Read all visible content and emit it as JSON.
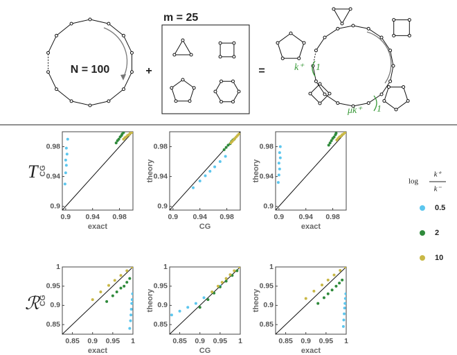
{
  "diagram": {
    "ring_label": "N = 100",
    "plus": "+",
    "motif_label": "m = 25",
    "equals": "=",
    "rate_forward": "k⁺",
    "rate_back": "1",
    "rate_forward_mu": "μk⁺",
    "rate_back_2": "1"
  },
  "row_labels": [
    "T",
    "ℛ"
  ],
  "legend": {
    "prefix": "log",
    "numerator": "k⁺",
    "denominator": "k⁻"
  },
  "chart_data": [
    {
      "type": "scatter",
      "xlabel": "exact",
      "ylabel": "CG",
      "xlim": [
        0.895,
        1.0
      ],
      "ylim": [
        0.895,
        1.0
      ],
      "xticks": [
        0.9,
        0.94,
        0.98
      ],
      "yticks": [
        0.9,
        0.94,
        0.98
      ],
      "series": [
        {
          "name": "0.5",
          "color": "#5cc6ee",
          "x": [
            0.899,
            0.9,
            0.901,
            0.9,
            0.902,
            0.901,
            0.903
          ],
          "values": [
            0.93,
            0.945,
            0.955,
            0.962,
            0.97,
            0.978,
            0.99
          ]
        },
        {
          "name": "2",
          "color": "#2f8a3b",
          "x": [
            0.975,
            0.977,
            0.979,
            0.981,
            0.983,
            0.984,
            0.986
          ],
          "values": [
            0.985,
            0.988,
            0.99,
            0.993,
            0.995,
            0.997,
            0.999
          ]
        },
        {
          "name": "10",
          "color": "#c9b846",
          "x": [
            0.986,
            0.988,
            0.99,
            0.992,
            0.994,
            0.996,
            0.998
          ],
          "values": [
            0.99,
            0.992,
            0.993,
            0.995,
            0.996,
            0.998,
            0.999
          ]
        }
      ]
    },
    {
      "type": "scatter",
      "xlabel": "CG",
      "ylabel": "theory",
      "xlim": [
        0.895,
        1.0
      ],
      "ylim": [
        0.895,
        1.0
      ],
      "xticks": [
        0.9,
        0.94,
        0.98
      ],
      "yticks": [
        0.9,
        0.94,
        0.98
      ],
      "series": [
        {
          "color": "#5cc6ee",
          "x": [
            0.93,
            0.94,
            0.948,
            0.955,
            0.962,
            0.97,
            0.978
          ],
          "values": [
            0.925,
            0.934,
            0.941,
            0.947,
            0.953,
            0.96,
            0.967
          ]
        },
        {
          "color": "#2f8a3b",
          "x": [
            0.976,
            0.979,
            0.982,
            0.985,
            0.987,
            0.989,
            0.991
          ],
          "values": [
            0.976,
            0.979,
            0.982,
            0.984,
            0.987,
            0.989,
            0.99
          ]
        },
        {
          "color": "#c9b846",
          "x": [
            0.986,
            0.988,
            0.99,
            0.992,
            0.994,
            0.996,
            0.998
          ],
          "values": [
            0.985,
            0.987,
            0.989,
            0.991,
            0.993,
            0.995,
            0.997
          ]
        }
      ]
    },
    {
      "type": "scatter",
      "xlabel": "exact",
      "ylabel": "theory",
      "xlim": [
        0.895,
        1.0
      ],
      "ylim": [
        0.895,
        1.0
      ],
      "xticks": [
        0.9,
        0.94,
        0.98
      ],
      "yticks": [
        0.9,
        0.94,
        0.98
      ],
      "series": [
        {
          "color": "#5cc6ee",
          "x": [
            0.899,
            0.9,
            0.901,
            0.9,
            0.902,
            0.901,
            0.902
          ],
          "values": [
            0.932,
            0.942,
            0.95,
            0.958,
            0.965,
            0.972,
            0.98
          ]
        },
        {
          "color": "#2f8a3b",
          "x": [
            0.974,
            0.976,
            0.978,
            0.98,
            0.982,
            0.984,
            0.985
          ],
          "values": [
            0.982,
            0.985,
            0.988,
            0.991,
            0.993,
            0.996,
            0.998
          ]
        },
        {
          "color": "#c9b846",
          "x": [
            0.986,
            0.988,
            0.99,
            0.992,
            0.994,
            0.996,
            0.998
          ],
          "values": [
            0.989,
            0.991,
            0.993,
            0.994,
            0.996,
            0.997,
            0.999
          ]
        }
      ]
    },
    {
      "type": "scatter",
      "xlabel": "exact",
      "ylabel": "CG",
      "xlim": [
        0.825,
        1.0
      ],
      "ylim": [
        0.825,
        1.0
      ],
      "xticks": [
        0.85,
        0.9,
        0.95,
        1
      ],
      "yticks": [
        0.85,
        0.9,
        0.95,
        1
      ],
      "series": [
        {
          "color": "#5cc6ee",
          "x": [
            0.992,
            0.994,
            0.995,
            0.996,
            0.997,
            0.998,
            0.999
          ],
          "values": [
            0.84,
            0.86,
            0.875,
            0.89,
            0.905,
            0.915,
            0.93
          ]
        },
        {
          "color": "#2f8a3b",
          "x": [
            0.935,
            0.95,
            0.96,
            0.97,
            0.978,
            0.985,
            0.992
          ],
          "values": [
            0.91,
            0.925,
            0.935,
            0.945,
            0.95,
            0.96,
            0.97
          ]
        },
        {
          "color": "#c9b846",
          "x": [
            0.9,
            0.92,
            0.94,
            0.955,
            0.97,
            0.985,
            0.998
          ],
          "values": [
            0.915,
            0.935,
            0.952,
            0.965,
            0.978,
            0.99,
            1.0
          ]
        }
      ]
    },
    {
      "type": "scatter",
      "xlabel": "CG",
      "ylabel": "theory",
      "xlim": [
        0.825,
        1.0
      ],
      "ylim": [
        0.825,
        1.0
      ],
      "xticks": [
        0.85,
        0.9,
        0.95,
        1
      ],
      "yticks": [
        0.85,
        0.9,
        0.95,
        1
      ],
      "series": [
        {
          "color": "#5cc6ee",
          "x": [
            0.83,
            0.85,
            0.87,
            0.89,
            0.91,
            0.93,
            0.95
          ],
          "values": [
            0.875,
            0.885,
            0.895,
            0.905,
            0.92,
            0.935,
            0.95
          ]
        },
        {
          "color": "#2f8a3b",
          "x": [
            0.9,
            0.92,
            0.935,
            0.95,
            0.965,
            0.98,
            0.992
          ],
          "values": [
            0.895,
            0.915,
            0.932,
            0.948,
            0.963,
            0.978,
            0.99
          ]
        },
        {
          "color": "#c9b846",
          "x": [
            0.93,
            0.945,
            0.955,
            0.965,
            0.975,
            0.985,
            0.998
          ],
          "values": [
            0.935,
            0.95,
            0.96,
            0.97,
            0.98,
            0.99,
            1.0
          ]
        }
      ]
    },
    {
      "type": "scatter",
      "xlabel": "exact",
      "ylabel": "theory",
      "xlim": [
        0.825,
        1.0
      ],
      "ylim": [
        0.825,
        1.0
      ],
      "xticks": [
        0.85,
        0.9,
        0.95,
        1
      ],
      "yticks": [
        0.85,
        0.9,
        0.95,
        1
      ],
      "series": [
        {
          "color": "#5cc6ee",
          "x": [
            0.993,
            0.994,
            0.995,
            0.996,
            0.997,
            0.998,
            0.999
          ],
          "values": [
            0.845,
            0.862,
            0.878,
            0.893,
            0.905,
            0.918,
            0.93
          ]
        },
        {
          "color": "#2f8a3b",
          "x": [
            0.93,
            0.945,
            0.955,
            0.965,
            0.975,
            0.983,
            0.99
          ],
          "values": [
            0.905,
            0.92,
            0.93,
            0.94,
            0.95,
            0.958,
            0.966
          ]
        },
        {
          "color": "#c9b846",
          "x": [
            0.9,
            0.92,
            0.94,
            0.955,
            0.97,
            0.985,
            0.998
          ],
          "values": [
            0.918,
            0.937,
            0.953,
            0.966,
            0.979,
            0.991,
            1.0
          ]
        }
      ]
    }
  ]
}
